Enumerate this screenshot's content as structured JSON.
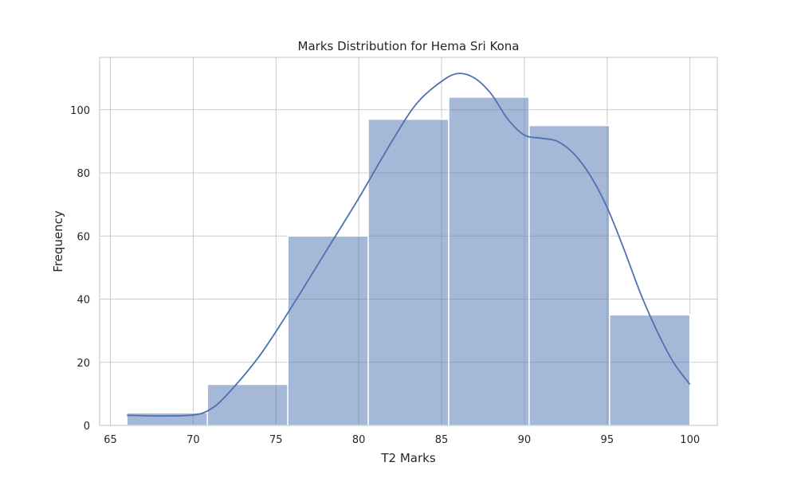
{
  "chart_data": {
    "type": "bar",
    "title": "Marks Distribution for Hema Sri Kona",
    "xlabel": "T2 Marks",
    "ylabel": "Frequency",
    "xlim": [
      64.35,
      101.65
    ],
    "ylim": [
      0,
      116.6
    ],
    "xticks": [
      65,
      70,
      75,
      80,
      85,
      90,
      95,
      100
    ],
    "yticks": [
      0,
      20,
      40,
      60,
      80,
      100
    ],
    "grid": true,
    "bins": [
      {
        "start": 66.0,
        "end": 70.857,
        "count": 4
      },
      {
        "start": 70.857,
        "end": 75.714,
        "count": 13
      },
      {
        "start": 75.714,
        "end": 80.571,
        "count": 60
      },
      {
        "start": 80.571,
        "end": 85.429,
        "count": 97
      },
      {
        "start": 85.429,
        "end": 90.286,
        "count": 104
      },
      {
        "start": 90.286,
        "end": 95.143,
        "count": 95
      },
      {
        "start": 95.143,
        "end": 100.0,
        "count": 35
      }
    ],
    "kde": {
      "x": [
        66,
        68,
        70,
        71,
        72,
        74,
        76,
        78,
        80,
        82,
        83.5,
        85,
        86,
        87,
        88,
        89,
        90,
        91,
        92,
        93,
        94,
        95,
        96,
        97,
        98,
        99,
        100
      ],
      "y": [
        3.2,
        3.0,
        3.3,
        5.0,
        9.5,
        22,
        38,
        55,
        72,
        90,
        102,
        109,
        111.5,
        110,
        105,
        97,
        92,
        91,
        90,
        86,
        79,
        69,
        56,
        42,
        30,
        20,
        13
      ]
    },
    "colors": {
      "bar_fill": "#4c72b0",
      "bar_opacity": 0.5,
      "bar_edge": "#ffffff",
      "kde_line": "#4c72b0",
      "grid": "#cccccc",
      "frame": "#cccccc"
    }
  }
}
